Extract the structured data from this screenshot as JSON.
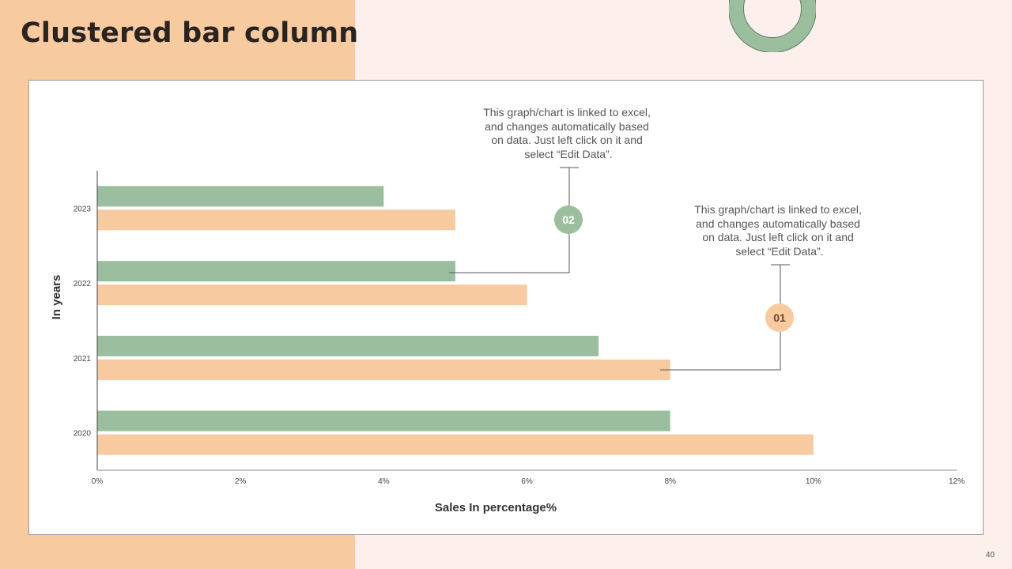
{
  "slide": {
    "title": "Clustered bar column",
    "page_number": "40"
  },
  "colors": {
    "left_panel": "#f7caa0",
    "background": "#fdf0ec",
    "series_green": "#9bbf9e",
    "series_peach": "#f7caa0"
  },
  "callouts": [
    {
      "number": "02",
      "lines": [
        "This graph/chart is linked to excel,",
        "and changes automatically based",
        "on data. Just left click on it and",
        "select “Edit Data”."
      ],
      "color": "#9bbf9e"
    },
    {
      "number": "01",
      "lines": [
        "This graph/chart is linked to excel,",
        "and changes automatically based",
        "on data. Just left click on it and",
        "select “Edit Data”."
      ],
      "color": "#f7caa0"
    }
  ],
  "chart_data": {
    "type": "bar",
    "orientation": "horizontal",
    "categories": [
      "2020",
      "2021",
      "2022",
      "2023"
    ],
    "series": [
      {
        "values": [
          8,
          7,
          5,
          4
        ],
        "color": "#9bbf9e"
      },
      {
        "values": [
          10,
          8,
          6,
          5
        ],
        "color": "#f7caa0"
      }
    ],
    "xlabel": "Sales In percentage%",
    "ylabel": "In years",
    "xlim": [
      0,
      12
    ],
    "xticks": [
      "0%",
      "2%",
      "4%",
      "6%",
      "8%",
      "10%",
      "12%"
    ],
    "grid": false,
    "legend": "none"
  }
}
